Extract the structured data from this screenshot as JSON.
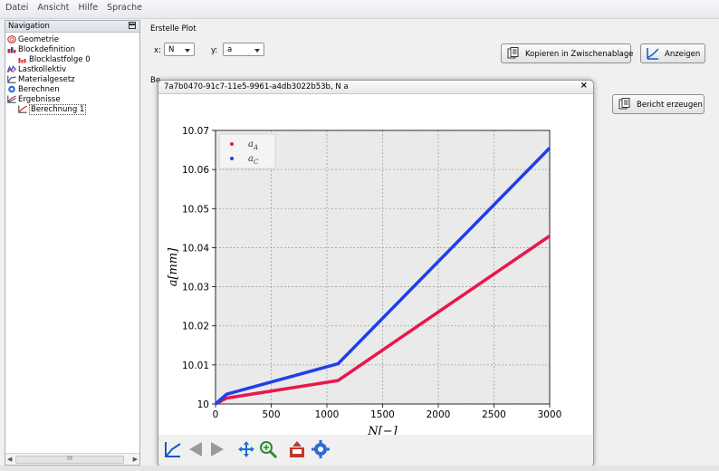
{
  "menubar": {
    "items": [
      "Datei",
      "Ansicht",
      "Hilfe",
      "Sprache"
    ]
  },
  "navigation": {
    "title": "Navigation",
    "items": [
      {
        "label": "Geometrie",
        "icon": "geometry-icon",
        "depth": 0
      },
      {
        "label": "Blockdefinition",
        "icon": "block-definition-icon",
        "depth": 0
      },
      {
        "label": "Blocklastfolge 0",
        "icon": "block-load-sequence-icon",
        "depth": 1
      },
      {
        "label": "Lastkollektiv",
        "icon": "load-spectrum-icon",
        "depth": 0
      },
      {
        "label": "Materialgesetz",
        "icon": "material-law-icon",
        "depth": 0
      },
      {
        "label": "Berechnen",
        "icon": "gear-icon",
        "depth": 0
      },
      {
        "label": "Ergebnisse",
        "icon": "results-icon",
        "depth": 0
      },
      {
        "label": "Berechnung 1",
        "icon": "calculation-icon",
        "depth": 1,
        "selected": true
      }
    ],
    "scrollbar_grip": "III"
  },
  "plot_section": {
    "title": "Erstelle Plot",
    "x_label": "x:",
    "x_value": "N",
    "y_label": "y:",
    "y_value": "a",
    "copy_button": "Kopieren in Zwischenablage",
    "show_button": "Anzeigen"
  },
  "report_section": {
    "label": "Be",
    "report_button": "Bericht erzeugen"
  },
  "plot_window": {
    "title": "7a7b0470-91c7-11e5-9961-a4db3022b53b, N a",
    "close": "×",
    "toolbar": [
      "home-icon",
      "back-icon",
      "forward-icon",
      "pan-icon",
      "zoom-icon",
      "save-icon",
      "configure-icon"
    ]
  },
  "chart_data": {
    "type": "line",
    "xlabel": "N[−]",
    "ylabel": "a[mm]",
    "xlim": [
      0,
      3000
    ],
    "ylim": [
      10.0,
      10.07
    ],
    "xticks": [
      0,
      500,
      1000,
      1500,
      2000,
      2500,
      3000
    ],
    "yticks": [
      10,
      10.01,
      10.02,
      10.03,
      10.04,
      10.05,
      10.06,
      10.07
    ],
    "ytick_labels": [
      "10",
      "10.01",
      "10.02",
      "10.03",
      "10.04",
      "10.05",
      "10.06",
      "10.07"
    ],
    "grid": true,
    "legend": "top-left",
    "background": "#eaeaea",
    "series": [
      {
        "name": "a_A",
        "label_main": "a",
        "label_sub": "A",
        "color": "#e8174e",
        "x": [
          0,
          100,
          1100,
          3000
        ],
        "y": [
          10.0,
          10.0015,
          10.006,
          10.043
        ]
      },
      {
        "name": "a_C",
        "label_main": "a",
        "label_sub": "C",
        "color": "#1f3fe8",
        "x": [
          0,
          100,
          1100,
          3000
        ],
        "y": [
          10.0,
          10.0025,
          10.0103,
          10.0655
        ]
      }
    ]
  }
}
